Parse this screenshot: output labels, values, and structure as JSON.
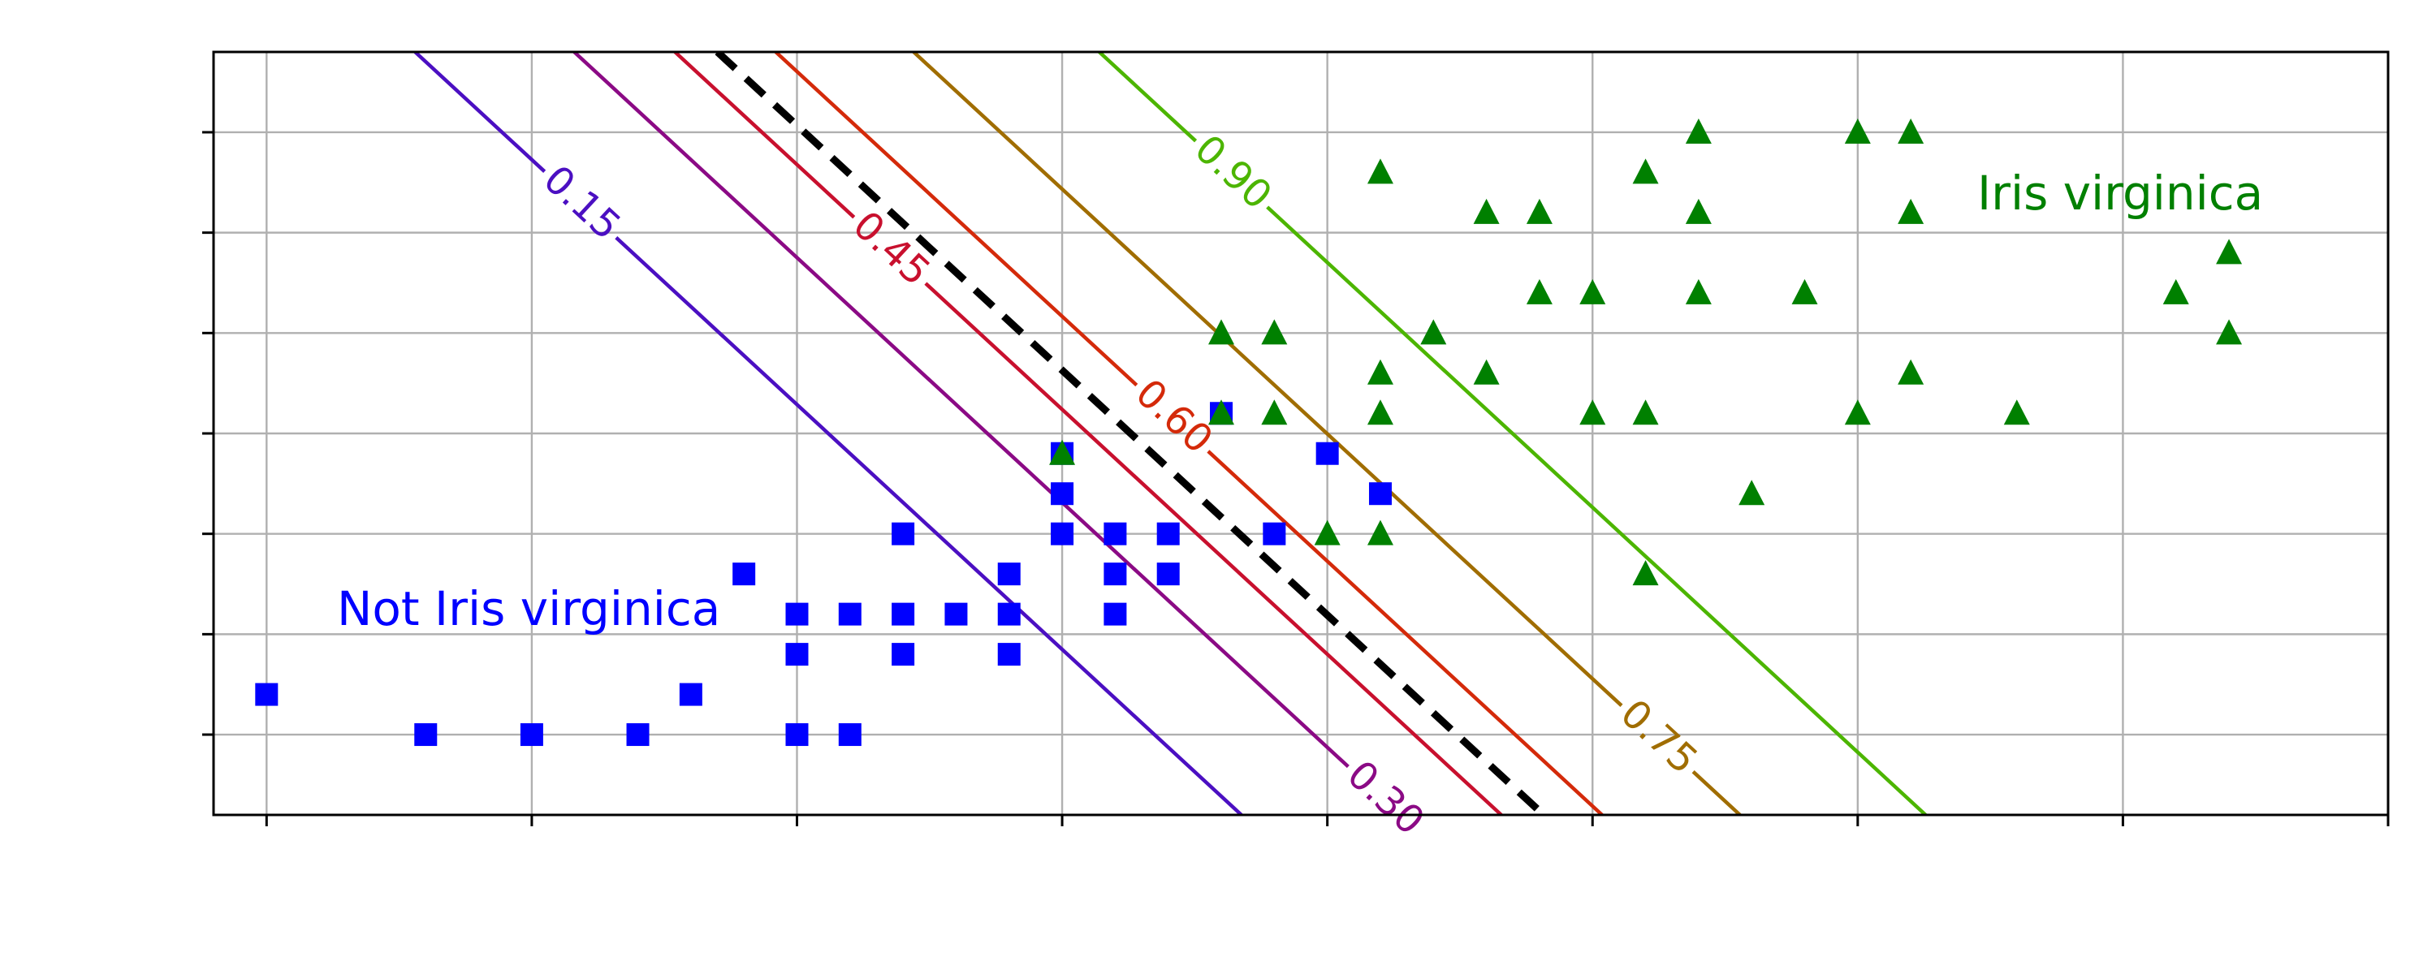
{
  "chart_data": {
    "type": "scatter",
    "title": "",
    "xlabel": "",
    "ylabel": "",
    "xlim": [
      2.9,
      7.0
    ],
    "ylim": [
      0.8,
      2.7
    ],
    "grid": true,
    "legend": "none",
    "series": [
      {
        "name": "Not Iris virginica",
        "color": "#0000ff",
        "marker": "square",
        "points": [
          [
            3.0,
            1.1
          ],
          [
            3.3,
            1.0
          ],
          [
            3.5,
            1.0
          ],
          [
            3.7,
            1.0
          ],
          [
            3.8,
            1.1
          ],
          [
            3.9,
            1.4
          ],
          [
            4.0,
            1.0
          ],
          [
            4.0,
            1.2
          ],
          [
            4.0,
            1.3
          ],
          [
            4.1,
            1.0
          ],
          [
            4.1,
            1.3
          ],
          [
            4.2,
            1.2
          ],
          [
            4.2,
            1.3
          ],
          [
            4.2,
            1.5
          ],
          [
            4.3,
            1.3
          ],
          [
            4.4,
            1.2
          ],
          [
            4.4,
            1.3
          ],
          [
            4.4,
            1.4
          ],
          [
            4.5,
            1.5
          ],
          [
            4.5,
            1.6
          ],
          [
            4.5,
            1.7
          ],
          [
            4.6,
            1.3
          ],
          [
            4.6,
            1.4
          ],
          [
            4.6,
            1.5
          ],
          [
            4.7,
            1.4
          ],
          [
            4.7,
            1.5
          ],
          [
            4.8,
            1.8
          ],
          [
            4.9,
            1.5
          ],
          [
            5.0,
            1.7
          ],
          [
            5.1,
            1.6
          ]
        ]
      },
      {
        "name": "Iris virginica",
        "color": "#008000",
        "marker": "triangle",
        "points": [
          [
            4.5,
            1.7
          ],
          [
            4.8,
            1.8
          ],
          [
            4.8,
            2.0
          ],
          [
            4.9,
            1.8
          ],
          [
            4.9,
            2.0
          ],
          [
            5.0,
            1.5
          ],
          [
            5.1,
            1.5
          ],
          [
            5.1,
            1.8
          ],
          [
            5.1,
            1.9
          ],
          [
            5.1,
            2.4
          ],
          [
            5.2,
            2.0
          ],
          [
            5.3,
            1.9
          ],
          [
            5.3,
            2.3
          ],
          [
            5.4,
            2.1
          ],
          [
            5.4,
            2.3
          ],
          [
            5.5,
            1.8
          ],
          [
            5.5,
            2.1
          ],
          [
            5.6,
            1.4
          ],
          [
            5.6,
            1.8
          ],
          [
            5.6,
            2.4
          ],
          [
            5.7,
            2.1
          ],
          [
            5.7,
            2.3
          ],
          [
            5.7,
            2.5
          ],
          [
            5.8,
            1.6
          ],
          [
            5.9,
            2.1
          ],
          [
            6.0,
            1.8
          ],
          [
            6.0,
            2.5
          ],
          [
            6.1,
            1.9
          ],
          [
            6.1,
            2.3
          ],
          [
            6.1,
            2.5
          ],
          [
            6.3,
            1.8
          ],
          [
            6.6,
            2.1
          ],
          [
            6.7,
            2.0
          ],
          [
            6.7,
            2.2
          ]
        ]
      }
    ],
    "contours": [
      {
        "label": "0.15",
        "color": "#4b0fc2",
        "x_at_ymax": 3.28
      },
      {
        "label": "0.30",
        "color": "#8b0a85",
        "x_at_ymax": 3.58
      },
      {
        "label": "0.45",
        "color": "#c8102e",
        "x_at_ymax": 3.77
      },
      {
        "label": "0.60",
        "color": "#d42a0a",
        "x_at_ymax": 3.96
      },
      {
        "label": "0.75",
        "color": "#a06d00",
        "x_at_ymax": 4.22
      },
      {
        "label": "0.90",
        "color": "#4cb500",
        "x_at_ymax": 4.57
      }
    ],
    "decision_boundary": {
      "style": "dashed",
      "color": "#000000",
      "x_at_ymax": 3.85
    },
    "contour_slope_dx_per_dy": -0.82,
    "annotations": [
      {
        "text": "Not Iris virginica",
        "color": "#0000ff"
      },
      {
        "text": "Iris virginica",
        "color": "#008000"
      }
    ]
  }
}
